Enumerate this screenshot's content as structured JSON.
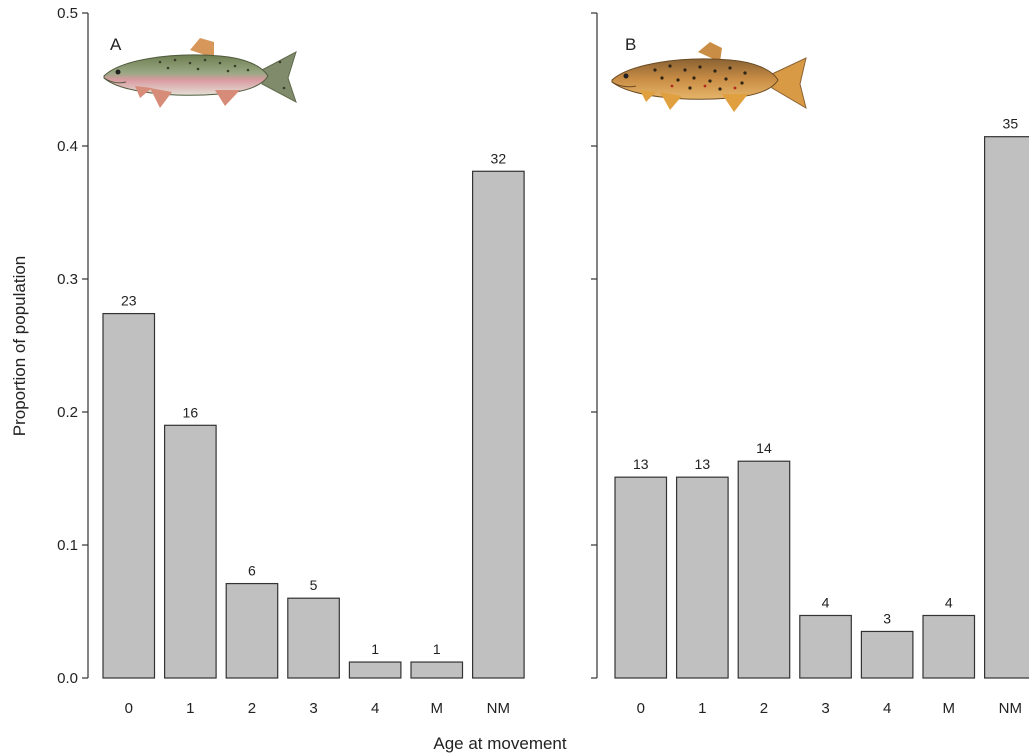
{
  "chart_data": {
    "type": "bar",
    "ylabel": "Proportion of population",
    "xlabel": "Age at movement",
    "ylim": [
      0,
      0.5
    ],
    "yticks": [
      "0.0",
      "0.1",
      "0.2",
      "0.3",
      "0.4",
      "0.5"
    ],
    "ytick_values": [
      0,
      0.1,
      0.2,
      0.3,
      0.4,
      0.5
    ],
    "categories": [
      "0",
      "1",
      "2",
      "3",
      "4",
      "M",
      "NM"
    ],
    "panels": [
      {
        "label": "A",
        "icon": "rainbow-trout-icon",
        "values": [
          0.274,
          0.19,
          0.071,
          0.06,
          0.012,
          0.012,
          0.381
        ],
        "bar_labels": [
          "23",
          "16",
          "6",
          "5",
          "1",
          "1",
          "32"
        ]
      },
      {
        "label": "B",
        "icon": "brown-trout-icon",
        "values": [
          0.151,
          0.151,
          0.163,
          0.047,
          0.035,
          0.047,
          0.407
        ],
        "bar_labels": [
          "13",
          "13",
          "14",
          "4",
          "3",
          "4",
          "35"
        ]
      }
    ],
    "grid": false,
    "legend": "none"
  }
}
